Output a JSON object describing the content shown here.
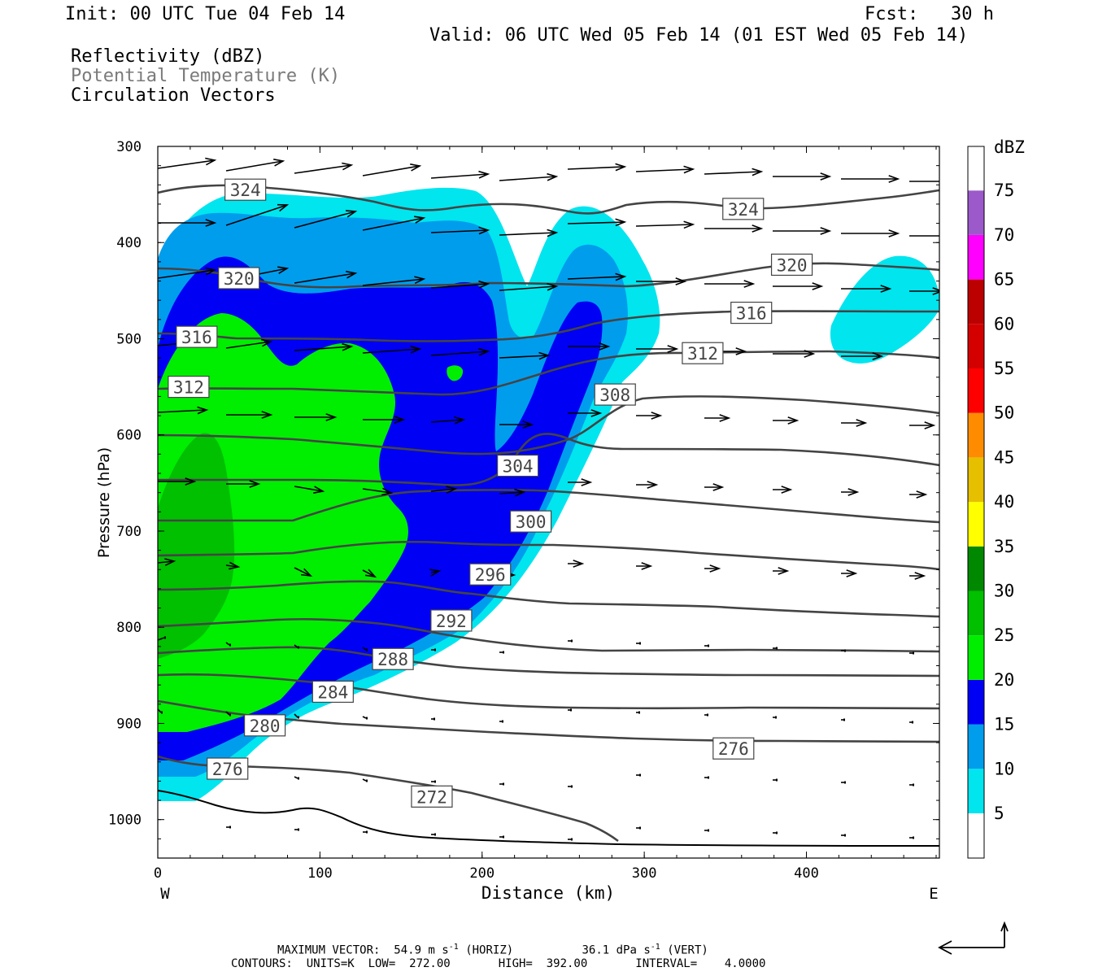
{
  "header": {
    "init": "Init: 00 UTC Tue 04 Feb 14",
    "fcst": "Fcst:   30 h",
    "valid": "Valid: 06 UTC Wed 05 Feb 14 (01 EST Wed 05 Feb 14)",
    "field1": "Reflectivity (dBZ)",
    "field2": "Potential Temperature (K)",
    "field3": "Circulation Vectors"
  },
  "footer": {
    "line1_a": "MAXIMUM VECTOR:  54.9 m s",
    "line1_b": " (HORIZ)          36.1 dPa s",
    "line1_c": " (VERT)",
    "sup": "-1",
    "line2": "CONTOURS:  UNITS=K  LOW=  272.00       HIGH=  392.00       INTERVAL=    4.0000"
  },
  "chart_data": {
    "type": "cross-section",
    "xlabel": "Distance (km)",
    "ylabel": "Pressure (hPa)",
    "x_ticks": [
      0,
      100,
      200,
      300,
      400
    ],
    "y_ticks": [
      300,
      400,
      500,
      600,
      700,
      800,
      900,
      1000
    ],
    "xlim": [
      0,
      482
    ],
    "ylim": [
      300,
      1040
    ],
    "y_inverted": true,
    "west_label": "W",
    "east_label": "E",
    "colorbar": {
      "title": "dBZ",
      "levels": [
        5,
        10,
        15,
        20,
        25,
        30,
        35,
        40,
        45,
        50,
        55,
        60,
        65,
        70,
        75
      ],
      "colors": [
        "#00e5ee",
        "#009ded",
        "#0000f5",
        "#00ee00",
        "#00c000",
        "#008800",
        "#ffff00",
        "#e6bf00",
        "#ff8c00",
        "#ff0000",
        "#d40000",
        "#bc0000",
        "#ff00ff",
        "#9b59c9",
        "#ffffff"
      ]
    },
    "theta_contour_labels": [
      {
        "value": "324",
        "x": 54,
        "p": 345
      },
      {
        "value": "324",
        "x": 361,
        "p": 365
      },
      {
        "value": "320",
        "x": 50,
        "p": 437
      },
      {
        "value": "320",
        "x": 391,
        "p": 423
      },
      {
        "value": "316",
        "x": 366,
        "p": 473
      },
      {
        "value": "316",
        "x": 24,
        "p": 498
      },
      {
        "value": "312",
        "x": 336,
        "p": 515
      },
      {
        "value": "312",
        "x": 19,
        "p": 550
      },
      {
        "value": "308",
        "x": 282,
        "p": 558
      },
      {
        "value": "304",
        "x": 222,
        "p": 632
      },
      {
        "value": "300",
        "x": 230,
        "p": 690
      },
      {
        "value": "296",
        "x": 205,
        "p": 745
      },
      {
        "value": "292",
        "x": 181,
        "p": 793
      },
      {
        "value": "288",
        "x": 145,
        "p": 833
      },
      {
        "value": "284",
        "x": 108,
        "p": 867
      },
      {
        "value": "280",
        "x": 66,
        "p": 902
      },
      {
        "value": "276",
        "x": 43,
        "p": 947
      },
      {
        "value": "276",
        "x": 355,
        "p": 926
      },
      {
        "value": "272",
        "x": 169,
        "p": 976
      }
    ]
  }
}
